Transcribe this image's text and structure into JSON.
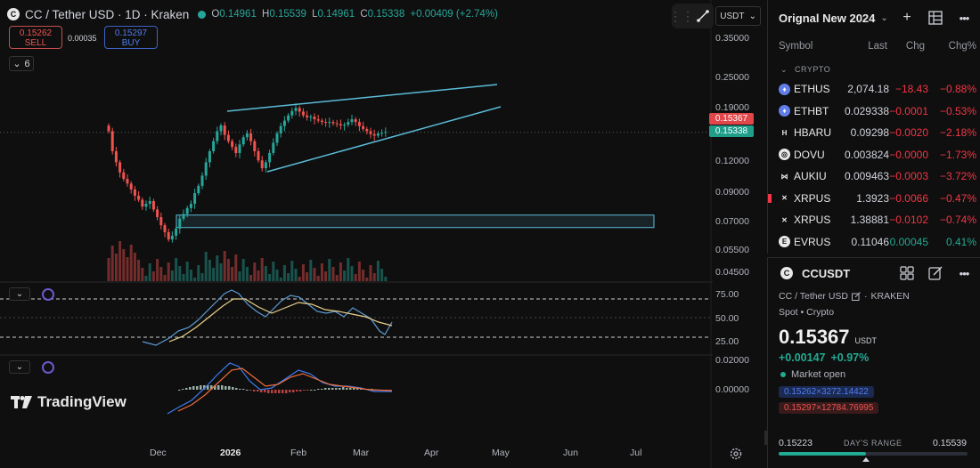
{
  "header": {
    "coin_letter": "C",
    "title": "CC / Tether USD · 1D · Kraken",
    "ohlc": {
      "o_key": "O",
      "o": "0.14961",
      "h_key": "H",
      "h": "0.15539",
      "l_key": "L",
      "l": "0.14961",
      "c_key": "C",
      "c": "0.15338",
      "change": "+0.00409 (+2.74%)"
    }
  },
  "trade": {
    "sell_price": "0.15262",
    "sell_label": "SELL",
    "spread": "0.00035",
    "buy_price": "0.15297",
    "buy_label": "BUY"
  },
  "indicator_count": "6",
  "toolbar": {
    "quote_currency": "USDT"
  },
  "brand": "TradingView",
  "price_axis": [
    "0.35000",
    "0.25000",
    "0.19000",
    "0.15000",
    "0.12000",
    "0.09000",
    "0.07000",
    "0.05500",
    "0.04500"
  ],
  "price_tags": {
    "current": "0.15367",
    "close": "0.15338"
  },
  "rsi_axis": [
    "75.00",
    "50.00",
    "25.00"
  ],
  "macd_axis": [
    "0.02000",
    "0.00000"
  ],
  "time_axis": [
    "Dec",
    "2026",
    "Feb",
    "Mar",
    "Apr",
    "May",
    "Jun",
    "Jul"
  ],
  "colors": {
    "up": "#26a69a",
    "down": "#ef5350",
    "trendline": "#5bbcd8",
    "rsi": "#5b9bd5",
    "rsi_ma": "#e8d08a",
    "macd": "#3d7cf0",
    "signal": "#ef6c3a"
  },
  "watchlist": {
    "name": "Orignal New 2024",
    "columns": [
      "Symbol",
      "Last",
      "Chg",
      "Chg%"
    ],
    "section": "CRYPTO",
    "rows": [
      {
        "symbol": "ETHUS",
        "last": "2,074.18",
        "chg": "−18.43",
        "chgp": "−0.88%",
        "dir": "neg",
        "icon": "ethereum-icon"
      },
      {
        "symbol": "ETHBT",
        "last": "0.029338",
        "chg": "−0.0001",
        "chgp": "−0.53%",
        "dir": "neg",
        "icon": "ethereum-icon"
      },
      {
        "symbol": "HBARU",
        "last": "0.09298",
        "chg": "−0.0020",
        "chgp": "−2.18%",
        "dir": "neg",
        "icon": "hedera-icon"
      },
      {
        "symbol": "DOVU",
        "last": "0.003824",
        "chg": "−0.0000",
        "chgp": "−1.73%",
        "dir": "neg",
        "icon": "dovu-icon"
      },
      {
        "symbol": "AUKIU",
        "last": "0.009463",
        "chg": "−0.0003",
        "chgp": "−3.72%",
        "dir": "neg",
        "icon": "auki-icon"
      },
      {
        "symbol": "XRPUS",
        "last": "1.3923",
        "chg": "−0.0066",
        "chgp": "−0.47%",
        "dir": "neg",
        "icon": "xrp-icon",
        "flag": true
      },
      {
        "symbol": "XRPUS",
        "last": "1.38881",
        "chg": "−0.0102",
        "chgp": "−0.74%",
        "dir": "neg",
        "icon": "xrp-icon"
      },
      {
        "symbol": "EVRUS",
        "last": "0.11046",
        "chg": "0.00045",
        "chgp": "0.41%",
        "dir": "pos",
        "icon": "evr-icon"
      }
    ]
  },
  "details": {
    "symbol": "CCUSDT",
    "description": "CC / Tether USD",
    "exchange": "KRAKEN",
    "type_line": "Spot • Crypto",
    "price": "0.15367",
    "currency": "USDT",
    "change": "+0.00147",
    "change_pct": "+0.97%",
    "market_status": "Market open",
    "bid_quote": "0.15262×3272.14422",
    "ask_quote": "0.15297×12784.76995",
    "range_low": "0.15223",
    "range_label": "DAY'S RANGE",
    "range_high": "0.15539",
    "range_position": 0.46
  },
  "chart_data": {
    "type": "candlestick",
    "title": "CC / Tether USD · 1D · Kraken",
    "price_ticks": [
      0.35,
      0.25,
      0.19,
      0.15,
      0.12,
      0.09,
      0.07,
      0.055,
      0.045
    ],
    "x_labels": [
      "Dec",
      "2026",
      "Feb",
      "Mar",
      "Apr",
      "May",
      "Jun",
      "Jul"
    ],
    "close_series": [
      0.155,
      0.13,
      0.118,
      0.108,
      0.102,
      0.098,
      0.093,
      0.088,
      0.085,
      0.08,
      0.082,
      0.084,
      0.078,
      0.073,
      0.068,
      0.064,
      0.06,
      0.062,
      0.066,
      0.072,
      0.075,
      0.079,
      0.082,
      0.09,
      0.096,
      0.105,
      0.118,
      0.13,
      0.142,
      0.155,
      0.163,
      0.15,
      0.142,
      0.135,
      0.128,
      0.138,
      0.147,
      0.152,
      0.142,
      0.13,
      0.12,
      0.112,
      0.118,
      0.128,
      0.14,
      0.152,
      0.162,
      0.17,
      0.178,
      0.185,
      0.19,
      0.184,
      0.178,
      0.175,
      0.176,
      0.172,
      0.17,
      0.168,
      0.167,
      0.168,
      0.166,
      0.165,
      0.163,
      0.164,
      0.168,
      0.172,
      0.168,
      0.162,
      0.158,
      0.155,
      0.151,
      0.149,
      0.152,
      0.153,
      0.154
    ],
    "overlays": {
      "rising_wedge_upper": [
        [
          0.185,
          0.24
        ]
      ],
      "rising_wedge_lower": [
        [
          0.113,
          0.19
        ]
      ],
      "support_zone": [
        0.066,
        0.072
      ]
    },
    "rsi_levels": [
      70,
      50,
      30
    ],
    "legend": "none"
  }
}
